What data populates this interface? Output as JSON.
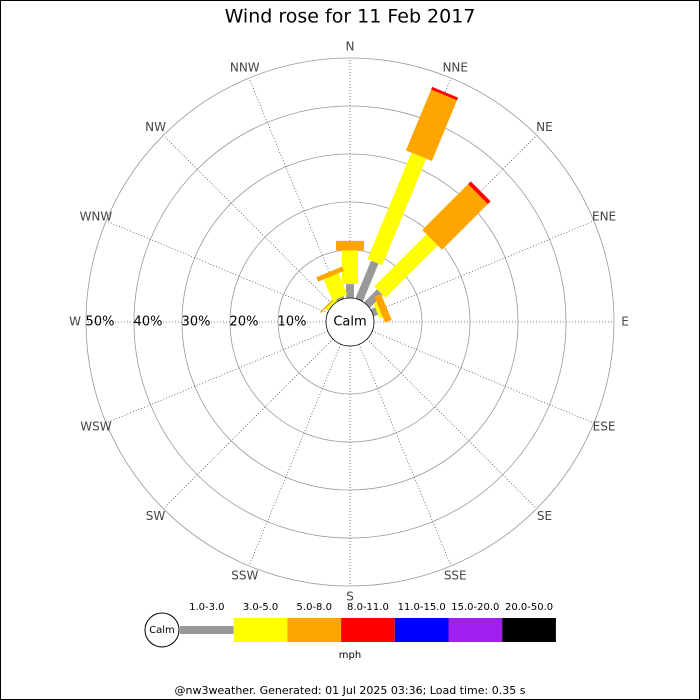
{
  "chart_data": {
    "type": "windrose",
    "title": "Wind rose for 11 Feb 2017",
    "categories": [
      "N",
      "NNE",
      "NE",
      "ENE",
      "E",
      "ESE",
      "SE",
      "SSE",
      "S",
      "SSW",
      "SW",
      "WSW",
      "W",
      "WNW",
      "NW",
      "NNW"
    ],
    "series": [
      {
        "name": "1.0-3.0",
        "color": "#999999",
        "values": [
          2.9,
          8.5,
          3.8,
          1.0,
          0,
          0,
          0,
          0,
          0,
          0,
          0,
          0,
          0,
          0,
          0,
          0.5
        ]
      },
      {
        "name": "3.0-5.0",
        "color": "#ffff00",
        "values": [
          7.0,
          24.0,
          15.4,
          0.7,
          0,
          0,
          0,
          0,
          0,
          0,
          0,
          0,
          0,
          0,
          0.6,
          4.8
        ]
      },
      {
        "name": "5.0-8.0",
        "color": "#ffa500",
        "values": [
          2.0,
          13.7,
          13.5,
          1.5,
          0,
          0,
          0,
          0,
          0,
          0,
          0,
          0,
          0,
          0,
          0.3,
          1.0
        ]
      },
      {
        "name": "8.0-11.0",
        "color": "#ff0000",
        "values": [
          0,
          0.6,
          0.8,
          0,
          0,
          0,
          0,
          0,
          0,
          0,
          0,
          0,
          0,
          0,
          0,
          0
        ]
      },
      {
        "name": "11.0-15.0",
        "color": "#0000ff",
        "values": [
          0,
          0,
          0,
          0,
          0,
          0,
          0,
          0,
          0,
          0,
          0,
          0,
          0,
          0,
          0,
          0
        ]
      },
      {
        "name": "15.0-20.0",
        "color": "#a020f0",
        "values": [
          0,
          0,
          0,
          0,
          0,
          0,
          0,
          0,
          0,
          0,
          0,
          0,
          0,
          0,
          0,
          0
        ]
      },
      {
        "name": "20.0-50.0",
        "color": "#000000",
        "values": [
          0,
          0,
          0,
          0,
          0,
          0,
          0,
          0,
          0,
          0,
          0,
          0,
          0,
          0,
          0,
          0
        ]
      }
    ],
    "rlim": [
      0,
      50
    ],
    "rticks": [
      {
        "value": 10,
        "label": "10%"
      },
      {
        "value": 20,
        "label": "20%"
      },
      {
        "value": 30,
        "label": "30%"
      },
      {
        "value": 40,
        "label": "40%"
      },
      {
        "value": 50,
        "label": "50%"
      }
    ],
    "calm_label": "Calm",
    "unit": "mph",
    "footer": "@nw3weather. Generated: 01 Jul 2025 03:36; Load time: 0.35 s"
  }
}
